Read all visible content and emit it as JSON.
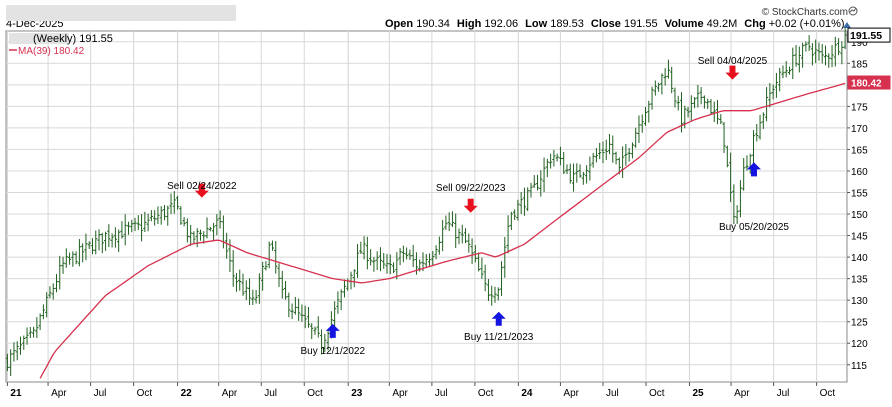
{
  "header": {
    "date": "4-Dec-2025",
    "symbol_box": "",
    "open_label": "Open",
    "open": "190.34",
    "high_label": "High",
    "high": "192.06",
    "low_label": "Low",
    "low": "189.53",
    "close_label": "Close",
    "close": "191.55",
    "volume_label": "Volume",
    "volume": "49.2M",
    "chg_label": "Chg",
    "chg": "+0.02 (+0.01%)",
    "copyright": "© StockCharts.com"
  },
  "legend": {
    "price_label": "(Weekly) 191.55",
    "ma_label": "MA(39) 180.42"
  },
  "colors": {
    "price_bars": "#1f5f1f",
    "ma_line": "#d6314f",
    "sell_arrow": "#e8101f",
    "buy_arrow": "#1414e0",
    "last_price_tag": "#000000",
    "ma_tag": "#d6314f",
    "grid": "#d8d8d8"
  },
  "chart_data": {
    "type": "ohlc",
    "interval": "weekly",
    "y_axis": {
      "side": "right",
      "ylim": [
        111,
        192.5
      ],
      "ticks": [
        115,
        120,
        125,
        130,
        135,
        140,
        145,
        150,
        155,
        160,
        165,
        170,
        175,
        180,
        185,
        190
      ],
      "last_price_tag": "191.55",
      "ma_tag": "180.42"
    },
    "x_axis": {
      "start": "2021-01-01",
      "end": "2025-12-05",
      "ticks": [
        {
          "date": "2021-01-04",
          "label": "21",
          "year": true
        },
        {
          "date": "2021-04-01",
          "label": "Apr"
        },
        {
          "date": "2021-07-01",
          "label": "Jul"
        },
        {
          "date": "2021-10-01",
          "label": "Oct"
        },
        {
          "date": "2022-01-03",
          "label": "22",
          "year": true
        },
        {
          "date": "2022-04-01",
          "label": "Apr"
        },
        {
          "date": "2022-07-01",
          "label": "Jul"
        },
        {
          "date": "2022-10-01",
          "label": "Oct"
        },
        {
          "date": "2023-01-03",
          "label": "23",
          "year": true
        },
        {
          "date": "2023-04-01",
          "label": "Apr"
        },
        {
          "date": "2023-07-01",
          "label": "Jul"
        },
        {
          "date": "2023-10-01",
          "label": "Oct"
        },
        {
          "date": "2024-01-02",
          "label": "24",
          "year": true
        },
        {
          "date": "2024-04-01",
          "label": "Apr"
        },
        {
          "date": "2024-07-01",
          "label": "Jul"
        },
        {
          "date": "2024-10-01",
          "label": "Oct"
        },
        {
          "date": "2025-01-02",
          "label": "25",
          "year": true
        },
        {
          "date": "2025-04-01",
          "label": "Apr"
        },
        {
          "date": "2025-07-01",
          "label": "Jul"
        },
        {
          "date": "2025-10-01",
          "label": "Oct"
        }
      ]
    },
    "price_path": [
      [
        "2021-01-04",
        116
      ],
      [
        "2021-03-01",
        122
      ],
      [
        "2021-05-01",
        138
      ],
      [
        "2021-08-01",
        145
      ],
      [
        "2021-10-15",
        147
      ],
      [
        "2021-12-30",
        152
      ],
      [
        "2022-01-31",
        144
      ],
      [
        "2022-02-28",
        146
      ],
      [
        "2022-04-01",
        148
      ],
      [
        "2022-05-01",
        136
      ],
      [
        "2022-06-15",
        129
      ],
      [
        "2022-07-20",
        143
      ],
      [
        "2022-08-15",
        131
      ],
      [
        "2022-09-30",
        125
      ],
      [
        "2022-11-07",
        120
      ],
      [
        "2022-12-15",
        130
      ],
      [
        "2023-02-01",
        142
      ],
      [
        "2023-03-01",
        139
      ],
      [
        "2023-04-01",
        137
      ],
      [
        "2023-05-01",
        141
      ],
      [
        "2023-06-01",
        138
      ],
      [
        "2023-07-01",
        141
      ],
      [
        "2023-08-01",
        148
      ],
      [
        "2023-09-15",
        143
      ],
      [
        "2023-10-27",
        132
      ],
      [
        "2023-11-20",
        133
      ],
      [
        "2023-12-15",
        150
      ],
      [
        "2024-02-01",
        155
      ],
      [
        "2024-03-15",
        164
      ],
      [
        "2024-05-01",
        158
      ],
      [
        "2024-06-01",
        162
      ],
      [
        "2024-07-15",
        166
      ],
      [
        "2024-08-05",
        160
      ],
      [
        "2024-10-01",
        175
      ],
      [
        "2024-11-15",
        184
      ],
      [
        "2024-12-15",
        172
      ],
      [
        "2025-02-01",
        178
      ],
      [
        "2025-03-15",
        169
      ],
      [
        "2025-04-07",
        148
      ],
      [
        "2025-04-28",
        160
      ],
      [
        "2025-05-20",
        168
      ],
      [
        "2025-07-01",
        180
      ],
      [
        "2025-08-15",
        186
      ],
      [
        "2025-09-15",
        189
      ],
      [
        "2025-10-15",
        186
      ],
      [
        "2025-11-15",
        189
      ],
      [
        "2025-12-04",
        191.55
      ]
    ],
    "ma_path": [
      [
        "2021-01-04",
        98
      ],
      [
        "2021-04-15",
        118
      ],
      [
        "2021-08-01",
        131
      ],
      [
        "2021-11-01",
        138
      ],
      [
        "2022-02-01",
        143
      ],
      [
        "2022-04-01",
        144
      ],
      [
        "2022-06-01",
        141
      ],
      [
        "2022-08-01",
        139
      ],
      [
        "2022-10-01",
        137
      ],
      [
        "2022-12-01",
        135
      ],
      [
        "2023-02-01",
        134
      ],
      [
        "2023-04-01",
        135
      ],
      [
        "2023-06-01",
        137
      ],
      [
        "2023-08-01",
        139
      ],
      [
        "2023-10-15",
        141
      ],
      [
        "2023-11-15",
        140
      ],
      [
        "2024-01-15",
        143
      ],
      [
        "2024-03-15",
        148
      ],
      [
        "2024-05-15",
        153
      ],
      [
        "2024-07-15",
        158
      ],
      [
        "2024-09-15",
        163
      ],
      [
        "2024-11-15",
        169
      ],
      [
        "2025-01-15",
        172
      ],
      [
        "2025-03-15",
        174
      ],
      [
        "2025-05-15",
        174
      ],
      [
        "2025-07-15",
        176
      ],
      [
        "2025-09-15",
        178
      ],
      [
        "2025-12-04",
        180.42
      ]
    ],
    "signals": [
      {
        "type": "sell",
        "date": "2022-02-24",
        "label": "Sell 02/24/2022",
        "arrow_y": 153.8,
        "label_y": 155.8
      },
      {
        "type": "buy",
        "date": "2022-12-01",
        "label": "Buy 12/1/2022",
        "arrow_y": 124.5,
        "label_y": 117.5
      },
      {
        "type": "sell",
        "date": "2023-09-22",
        "label": "Sell 09/22/2023",
        "arrow_y": 150.3,
        "label_y": 155.3
      },
      {
        "type": "buy",
        "date": "2023-11-21",
        "label": "Buy 11/21/2023",
        "arrow_y": 127.3,
        "label_y": 120.8
      },
      {
        "type": "sell",
        "date": "2025-04-04",
        "label": "Sell 04/04/2025",
        "arrow_y": 181.2,
        "label_y": 184.8
      },
      {
        "type": "buy",
        "date": "2025-05-20",
        "label": "Buy 05/20/2025",
        "arrow_y": 162.0,
        "label_y": 146.3
      }
    ]
  }
}
